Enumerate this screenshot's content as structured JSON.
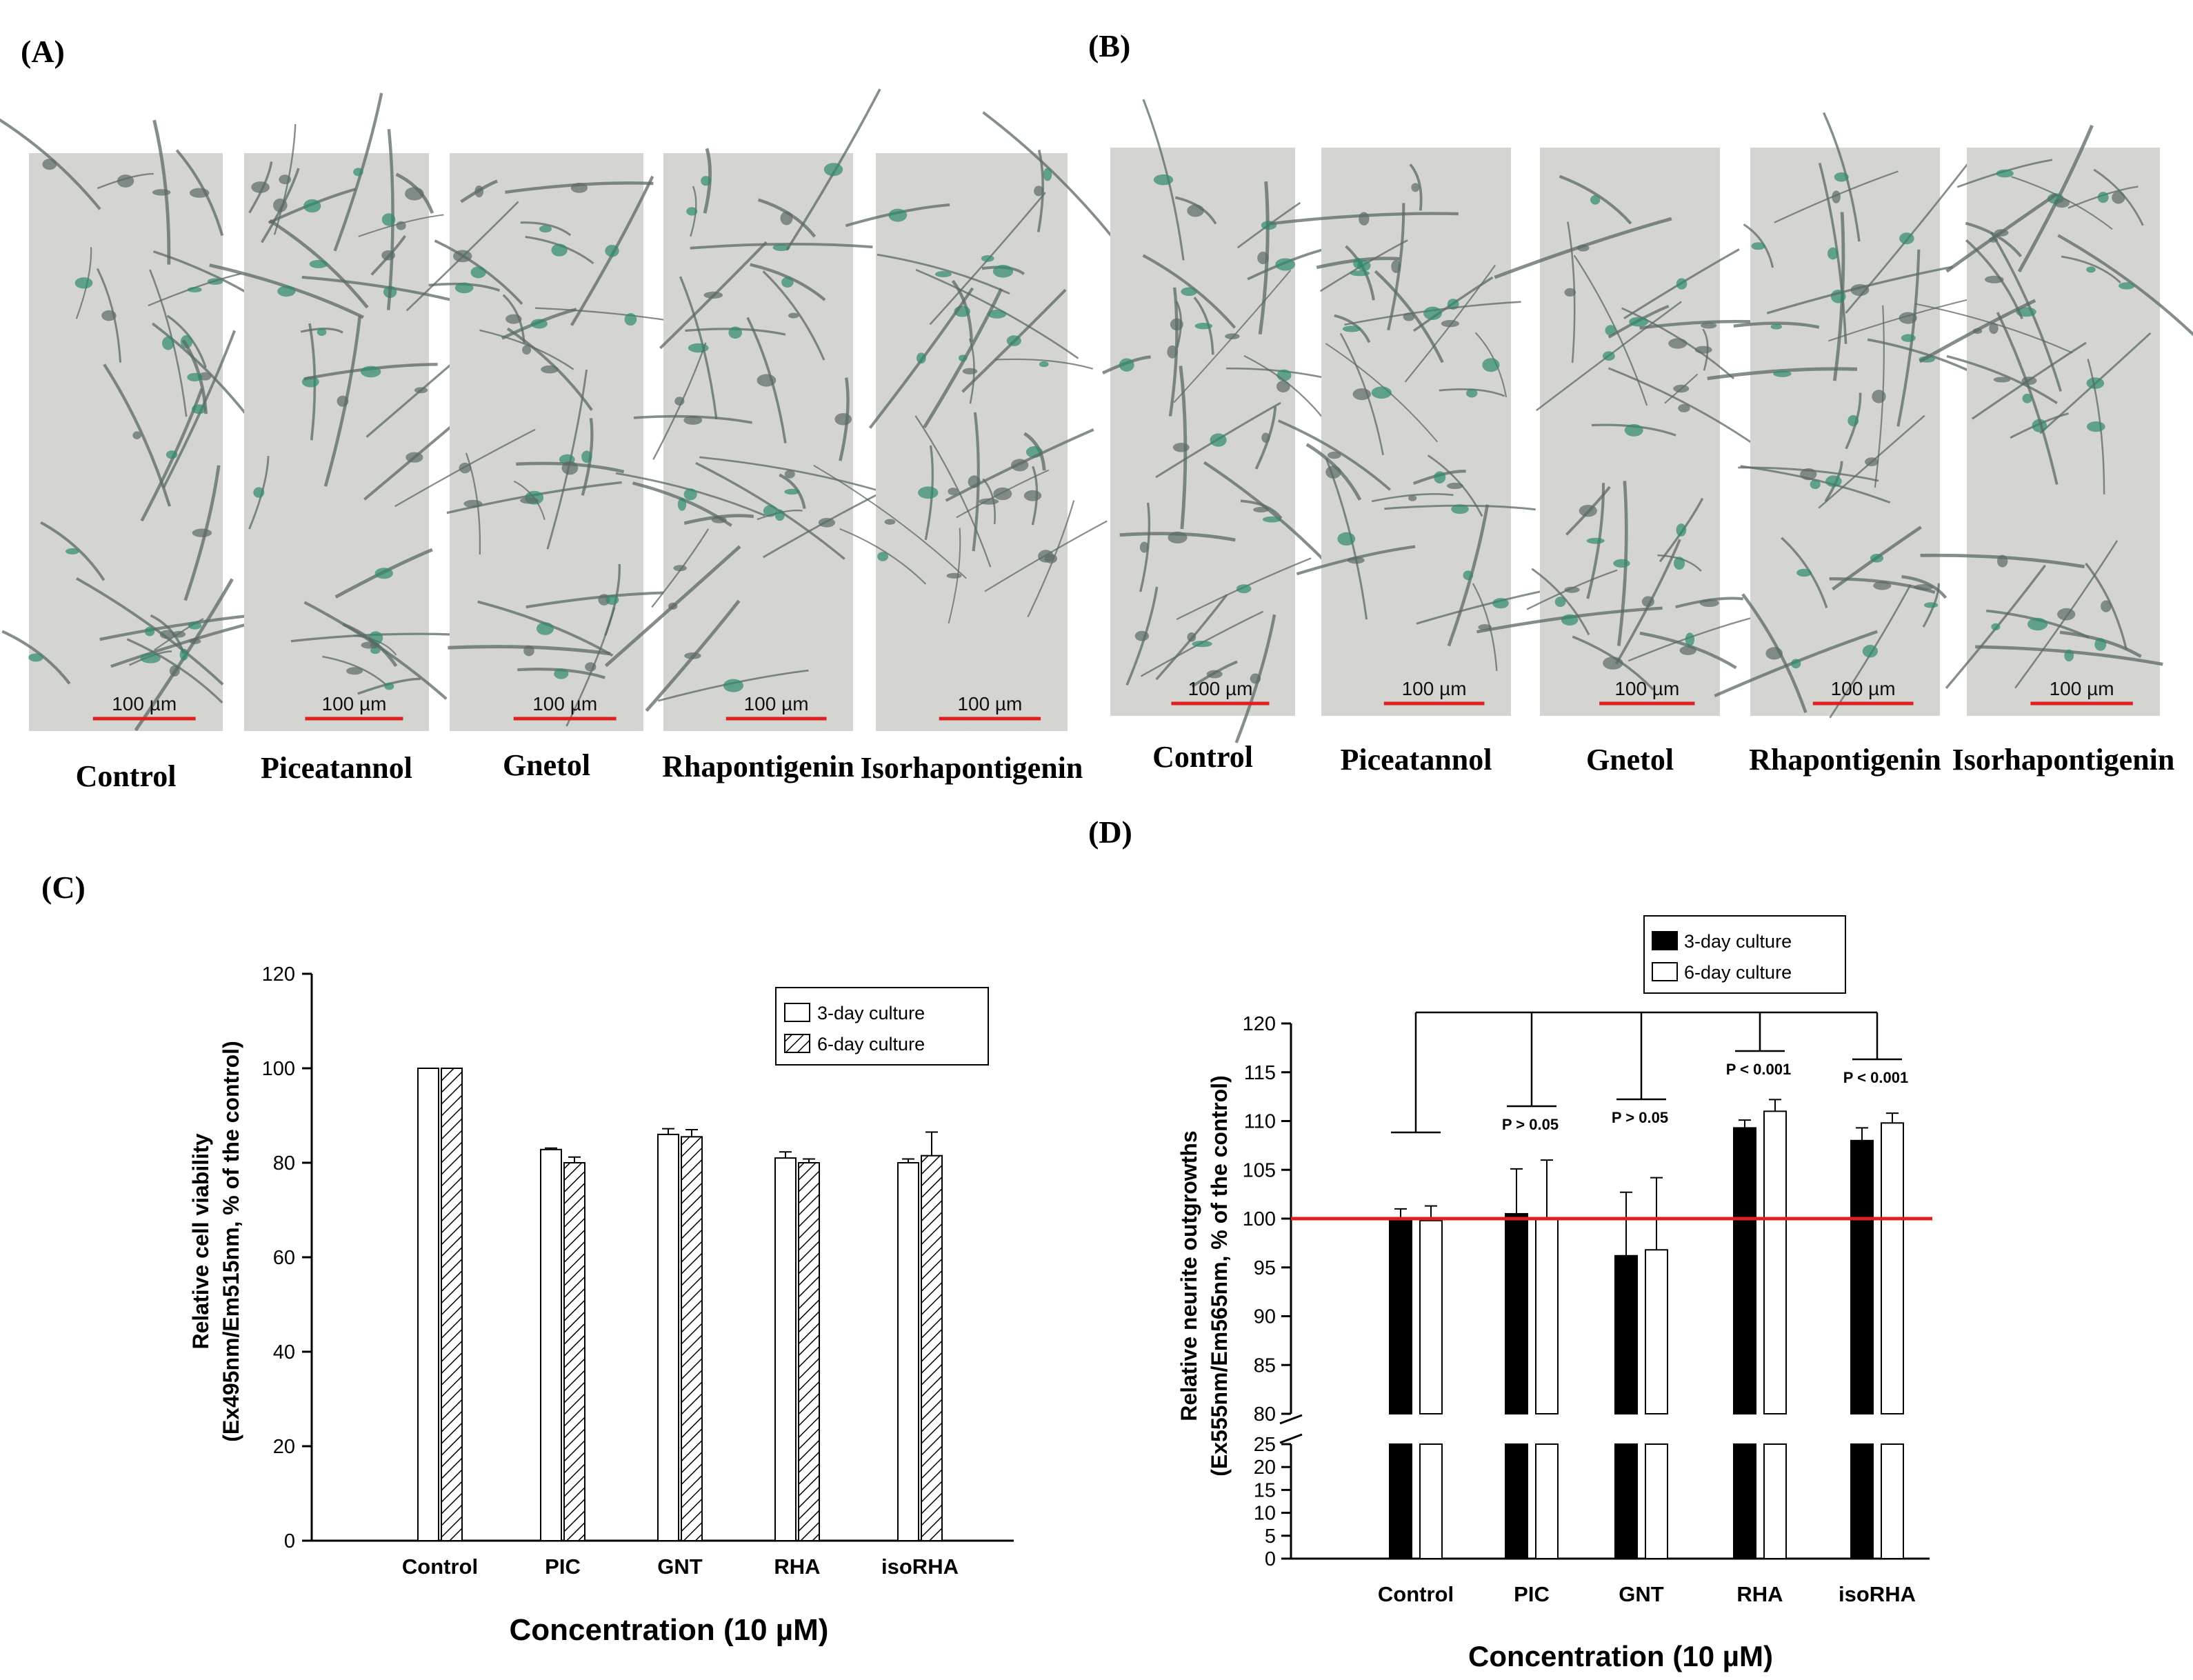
{
  "panels": {
    "A": "(A)",
    "B": "(B)",
    "C": "(C)",
    "D": "(D)"
  },
  "micrographs": {
    "scale_bar_text": "100 µm",
    "conditions": [
      "Control",
      "Piceatannol",
      "Gnetol",
      "Rhapontigenin",
      "Isorhapontigenin"
    ],
    "colors": {
      "background": "#d7d8d3",
      "cell": "#5b6a66",
      "cell_highlight": "#2f8a6e",
      "scale_bar": "#e02020"
    }
  },
  "chart_data": [
    {
      "panel": "C",
      "type": "bar",
      "categories": [
        "Control",
        "PIC",
        "GNT",
        "RHA",
        "isoRHA"
      ],
      "series": [
        {
          "name": "3-day culture",
          "values": [
            100,
            82.8,
            86.0,
            81.0,
            80.0
          ],
          "errors": [
            0,
            0.3,
            1.2,
            1.3,
            0.8
          ],
          "fill": "#ffffff",
          "pattern": "none"
        },
        {
          "name": "6-day culture",
          "values": [
            100,
            80.0,
            85.5,
            80.0,
            81.5
          ],
          "errors": [
            0,
            1.2,
            1.5,
            0.8,
            5.0
          ],
          "fill": "#ffffff",
          "pattern": "hatch"
        }
      ],
      "yticks": [
        0,
        20,
        40,
        60,
        80,
        100,
        120
      ],
      "ylim": [
        0,
        120
      ],
      "xlabel": "Concentration (10 µM)",
      "ylabel_line1": "Relative cell viability",
      "ylabel_line2": "(Ex495nm/Em515nm, % of the control)",
      "legend_position": "top-right",
      "grid": false
    },
    {
      "panel": "D",
      "type": "bar",
      "categories": [
        "Control",
        "PIC",
        "GNT",
        "RHA",
        "isoRHA"
      ],
      "series": [
        {
          "name": "3-day culture",
          "values": [
            99.8,
            100.5,
            96.2,
            109.3,
            108.0
          ],
          "errors": [
            1.2,
            4.6,
            6.5,
            0.8,
            1.3
          ],
          "fill": "#000000"
        },
        {
          "name": "6-day culture",
          "values": [
            99.8,
            100.0,
            96.8,
            111.0,
            109.8
          ],
          "errors": [
            1.5,
            6.0,
            7.4,
            1.2,
            1.0
          ],
          "fill": "#ffffff"
        }
      ],
      "yticks_upper": [
        80,
        85,
        90,
        95,
        100,
        105,
        110,
        115,
        120
      ],
      "yticks_lower": [
        0,
        5,
        10,
        15,
        20,
        25
      ],
      "ylim_upper": [
        80,
        120
      ],
      "ylim_lower": [
        0,
        25
      ],
      "axis_break": true,
      "reference_line": {
        "value": 100,
        "color": "#e02020"
      },
      "xlabel": "Concentration (10 µM)",
      "ylabel_line1": "Relative neurite outgrowths",
      "ylabel_line2": "(Ex555nm/Em565nm, % of the control)",
      "comparisons": [
        "P > 0.05",
        "P > 0.05",
        "P < 0.001",
        "P < 0.001"
      ],
      "legend_position": "top-center",
      "grid": false
    }
  ]
}
